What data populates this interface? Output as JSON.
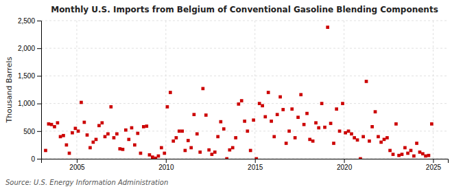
{
  "chart_data": {
    "type": "scatter",
    "title": "Monthly U.S. Imports from Belgium of Conventional Gasoline Blending Components",
    "ylabel": "Thousand Barrels",
    "source": "Source: U.S. Energy Information Administration",
    "color": "#cc0000",
    "marker": "square",
    "grid": true,
    "xlim": [
      2003.0,
      2025.83
    ],
    "ylim": [
      0,
      2500
    ],
    "xticks": [
      2005,
      2010,
      2015,
      2020,
      2025
    ],
    "yticks": [
      0,
      500,
      {
        "value": 1000,
        "label": "1,000"
      },
      {
        "value": 1500,
        "label": "1,500"
      },
      {
        "value": 2000,
        "label": "2,000"
      },
      {
        "value": 2500,
        "label": "2,500"
      }
    ],
    "x": [
      2003.25,
      2003.42,
      2003.58,
      2003.75,
      2003.92,
      2004.08,
      2004.25,
      2004.42,
      2004.58,
      2004.75,
      2004.92,
      2005.08,
      2005.25,
      2005.42,
      2005.58,
      2005.75,
      2005.92,
      2006.08,
      2006.25,
      2006.42,
      2006.58,
      2006.75,
      2006.92,
      2007.08,
      2007.25,
      2007.42,
      2007.58,
      2007.75,
      2007.92,
      2008.08,
      2008.25,
      2008.42,
      2008.58,
      2008.75,
      2008.92,
      2009.08,
      2009.25,
      2009.42,
      2009.58,
      2009.75,
      2009.92,
      2010.08,
      2010.25,
      2010.42,
      2010.58,
      2010.75,
      2010.92,
      2011.08,
      2011.25,
      2011.42,
      2011.58,
      2011.75,
      2011.92,
      2012.08,
      2012.25,
      2012.42,
      2012.58,
      2012.75,
      2012.92,
      2013.08,
      2013.25,
      2013.42,
      2013.58,
      2013.75,
      2013.92,
      2014.08,
      2014.25,
      2014.42,
      2014.58,
      2014.75,
      2014.92,
      2015.08,
      2015.25,
      2015.42,
      2015.58,
      2015.75,
      2015.92,
      2016.08,
      2016.25,
      2016.42,
      2016.58,
      2016.75,
      2016.92,
      2017.08,
      2017.25,
      2017.42,
      2017.58,
      2017.75,
      2017.92,
      2018.08,
      2018.25,
      2018.42,
      2018.58,
      2018.75,
      2018.92,
      2019.08,
      2019.25,
      2019.42,
      2019.58,
      2019.75,
      2019.92,
      2020.08,
      2020.25,
      2020.42,
      2020.58,
      2020.75,
      2020.92,
      2021.08,
      2021.25,
      2021.42,
      2021.58,
      2021.75,
      2021.92,
      2022.08,
      2022.25,
      2022.42,
      2022.58,
      2022.75,
      2022.92,
      2023.08,
      2023.25,
      2023.42,
      2023.58,
      2023.75,
      2023.92,
      2024.08,
      2024.25,
      2024.42,
      2024.58,
      2024.75,
      2024.92
    ],
    "values": [
      150,
      630,
      620,
      580,
      650,
      400,
      420,
      250,
      100,
      470,
      550,
      500,
      1020,
      660,
      430,
      200,
      300,
      350,
      600,
      650,
      400,
      450,
      940,
      380,
      450,
      180,
      170,
      520,
      350,
      560,
      250,
      460,
      100,
      580,
      590,
      70,
      30,
      10,
      50,
      200,
      100,
      940,
      1200,
      320,
      380,
      500,
      500,
      150,
      330,
      200,
      800,
      450,
      120,
      1270,
      790,
      160,
      80,
      120,
      400,
      670,
      540,
      0,
      160,
      200,
      380,
      990,
      1050,
      680,
      500,
      150,
      700,
      0,
      1000,
      960,
      760,
      1200,
      680,
      400,
      800,
      1120,
      890,
      280,
      500,
      900,
      380,
      750,
      1160,
      620,
      820,
      350,
      320,
      650,
      560,
      1000,
      570,
      2380,
      640,
      280,
      900,
      500,
      1000,
      470,
      500,
      450,
      380,
      340,
      0,
      400,
      1400,
      320,
      580,
      850,
      400,
      300,
      350,
      380,
      150,
      80,
      630,
      60,
      80,
      200,
      100,
      150,
      50,
      280,
      120,
      90,
      50,
      60,
      630
    ]
  }
}
